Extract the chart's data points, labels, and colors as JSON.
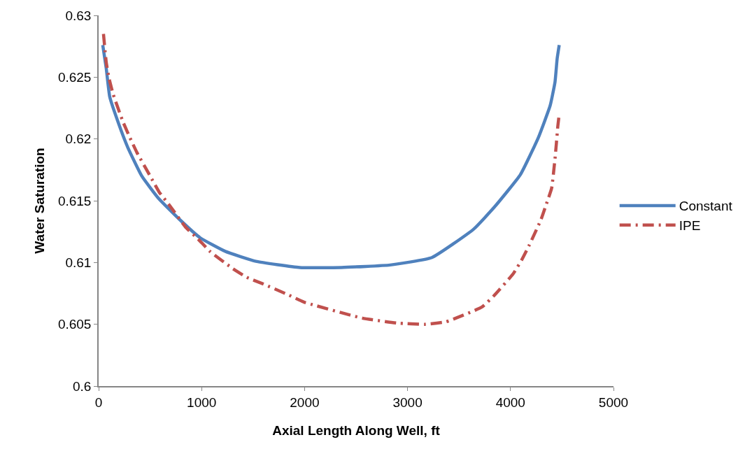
{
  "chart_data": {
    "type": "line",
    "xlabel": "Axial Length Along Well, ft",
    "ylabel": "Water Saturation",
    "xlim": [
      0,
      5000
    ],
    "xticks": [
      0,
      1000,
      2000,
      3000,
      4000,
      5000
    ],
    "ylim": [
      0.6,
      0.63
    ],
    "yticks": [
      0.6,
      0.605,
      0.61,
      0.615,
      0.62,
      0.625,
      0.63
    ],
    "legend": "right",
    "marker": "none",
    "series": [
      {
        "name": "Constant",
        "color": "#4f81bd",
        "line_style": "solid",
        "x": [
          40,
          74,
          108,
          196,
          284,
          419,
          581,
          784,
          986,
          1230,
          1527,
          1953,
          2358,
          2831,
          3236,
          3642,
          3845,
          4095,
          4270,
          4385,
          4432,
          4453,
          4473
        ],
        "values": [
          0.6276,
          0.6257,
          0.6234,
          0.6212,
          0.6193,
          0.617,
          0.6152,
          0.6135,
          0.612,
          0.6109,
          0.6101,
          0.6096,
          0.6096,
          0.6098,
          0.6104,
          0.6127,
          0.6145,
          0.6171,
          0.6201,
          0.6227,
          0.6246,
          0.6265,
          0.6276
        ]
      },
      {
        "name": "IPE",
        "color": "#c0504d",
        "line_style": "dashdot",
        "x": [
          47,
          74,
          101,
          142,
          236,
          304,
          372,
          507,
          588,
          682,
          851,
          966,
          1081,
          1304,
          1439,
          1588,
          1838,
          1993,
          2561,
          2899,
          3169,
          3372,
          3723,
          3838,
          4027,
          4108,
          4182,
          4297,
          4351,
          4399,
          4432,
          4446,
          4459,
          4473
        ],
        "values": [
          0.6285,
          0.6262,
          0.6249,
          0.6236,
          0.6214,
          0.6201,
          0.6189,
          0.6169,
          0.6157,
          0.6147,
          0.6128,
          0.6119,
          0.6109,
          0.6095,
          0.6088,
          0.6083,
          0.6074,
          0.6068,
          0.6055,
          0.6051,
          0.605,
          0.6052,
          0.6064,
          0.6073,
          0.6091,
          0.6102,
          0.6114,
          0.6135,
          0.6148,
          0.616,
          0.6184,
          0.6197,
          0.621,
          0.622
        ]
      }
    ]
  }
}
